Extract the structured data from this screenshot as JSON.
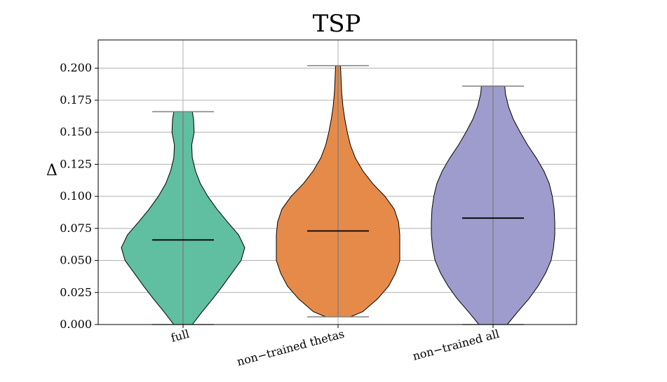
{
  "chart_data": {
    "type": "violin",
    "title": "TSP",
    "xlabel": "",
    "ylabel": "Δ",
    "ylim": [
      0.0,
      0.222
    ],
    "yticks": [
      "0.000",
      "0.025",
      "0.050",
      "0.075",
      "0.100",
      "0.125",
      "0.150",
      "0.175",
      "0.200"
    ],
    "ytick_values": [
      0.0,
      0.025,
      0.05,
      0.075,
      0.1,
      0.125,
      0.15,
      0.175,
      0.2
    ],
    "grid": true,
    "categories": [
      "full",
      "non−trained thetas",
      "non−trained all"
    ],
    "series": [
      {
        "category": "full",
        "color": "#5fbfa0",
        "min": 0.0,
        "max": 0.166,
        "median": 0.066,
        "density": [
          [
            0.0,
            0.15
          ],
          [
            0.01,
            0.31
          ],
          [
            0.02,
            0.48
          ],
          [
            0.03,
            0.64
          ],
          [
            0.04,
            0.79
          ],
          [
            0.05,
            0.94
          ],
          [
            0.06,
            1.0
          ],
          [
            0.07,
            0.9
          ],
          [
            0.08,
            0.72
          ],
          [
            0.09,
            0.55
          ],
          [
            0.1,
            0.4
          ],
          [
            0.11,
            0.28
          ],
          [
            0.12,
            0.2
          ],
          [
            0.13,
            0.15
          ],
          [
            0.14,
            0.14
          ],
          [
            0.15,
            0.18
          ],
          [
            0.16,
            0.17
          ],
          [
            0.166,
            0.15
          ]
        ]
      },
      {
        "category": "non−trained thetas",
        "color": "#e68a4a",
        "min": 0.006,
        "max": 0.202,
        "median": 0.073,
        "density": [
          [
            0.006,
            0.2
          ],
          [
            0.01,
            0.4
          ],
          [
            0.02,
            0.64
          ],
          [
            0.03,
            0.82
          ],
          [
            0.04,
            0.93
          ],
          [
            0.05,
            1.0
          ],
          [
            0.06,
            1.0
          ],
          [
            0.07,
            1.0
          ],
          [
            0.08,
            0.98
          ],
          [
            0.09,
            0.91
          ],
          [
            0.1,
            0.76
          ],
          [
            0.11,
            0.56
          ],
          [
            0.12,
            0.4
          ],
          [
            0.13,
            0.28
          ],
          [
            0.14,
            0.2
          ],
          [
            0.15,
            0.15
          ],
          [
            0.16,
            0.11
          ],
          [
            0.17,
            0.08
          ],
          [
            0.18,
            0.06
          ],
          [
            0.19,
            0.05
          ],
          [
            0.202,
            0.04
          ]
        ]
      },
      {
        "category": "non−trained all",
        "color": "#9e9ccc",
        "min": 0.0,
        "max": 0.186,
        "median": 0.083,
        "density": [
          [
            0.0,
            0.23
          ],
          [
            0.01,
            0.4
          ],
          [
            0.02,
            0.58
          ],
          [
            0.03,
            0.73
          ],
          [
            0.04,
            0.85
          ],
          [
            0.05,
            0.94
          ],
          [
            0.06,
            0.98
          ],
          [
            0.07,
            1.0
          ],
          [
            0.08,
            1.0
          ],
          [
            0.09,
            0.99
          ],
          [
            0.1,
            0.96
          ],
          [
            0.11,
            0.91
          ],
          [
            0.12,
            0.82
          ],
          [
            0.13,
            0.7
          ],
          [
            0.14,
            0.56
          ],
          [
            0.15,
            0.44
          ],
          [
            0.16,
            0.33
          ],
          [
            0.17,
            0.25
          ],
          [
            0.18,
            0.2
          ],
          [
            0.186,
            0.19
          ]
        ]
      }
    ]
  }
}
